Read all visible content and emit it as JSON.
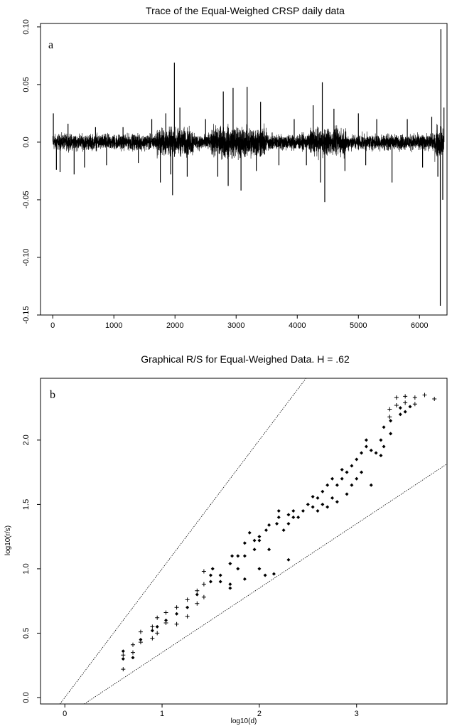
{
  "chart_data": [
    {
      "type": "line",
      "panel_label": "a",
      "title": "Trace of the Equal-Weighed CRSP daily data",
      "xlabel": "",
      "ylabel": "",
      "xlim": [
        -200,
        6450
      ],
      "ylim": [
        -0.15,
        0.103
      ],
      "x_ticks": [
        0,
        1000,
        2000,
        3000,
        4000,
        5000,
        6000
      ],
      "x_tick_labels": [
        "0",
        "1000",
        "2000",
        "3000",
        "4000",
        "5000",
        "6000"
      ],
      "y_ticks": [
        -0.15,
        -0.1,
        -0.05,
        0.0,
        0.05,
        0.1
      ],
      "y_tick_labels": [
        "-0.15",
        "-0.10",
        "-0.05",
        "0.0",
        "0.05",
        "0.10"
      ],
      "n_points": 6400,
      "spikes": [
        {
          "x": 10,
          "y": 0.025
        },
        {
          "x": 60,
          "y": -0.024
        },
        {
          "x": 120,
          "y": -0.026
        },
        {
          "x": 250,
          "y": 0.016
        },
        {
          "x": 350,
          "y": -0.028
        },
        {
          "x": 520,
          "y": -0.022
        },
        {
          "x": 700,
          "y": 0.013
        },
        {
          "x": 880,
          "y": -0.02
        },
        {
          "x": 1150,
          "y": 0.013
        },
        {
          "x": 1400,
          "y": -0.018
        },
        {
          "x": 1620,
          "y": 0.02
        },
        {
          "x": 1760,
          "y": -0.035
        },
        {
          "x": 1850,
          "y": 0.025
        },
        {
          "x": 1930,
          "y": -0.028
        },
        {
          "x": 1960,
          "y": -0.046
        },
        {
          "x": 1990,
          "y": 0.069
        },
        {
          "x": 2080,
          "y": 0.03
        },
        {
          "x": 2200,
          "y": -0.03
        },
        {
          "x": 2500,
          "y": 0.02
        },
        {
          "x": 2700,
          "y": -0.03
        },
        {
          "x": 2790,
          "y": 0.044
        },
        {
          "x": 2870,
          "y": -0.038
        },
        {
          "x": 2950,
          "y": 0.047
        },
        {
          "x": 3080,
          "y": -0.042
        },
        {
          "x": 3180,
          "y": 0.048
        },
        {
          "x": 3330,
          "y": -0.025
        },
        {
          "x": 3400,
          "y": 0.035
        },
        {
          "x": 3700,
          "y": -0.02
        },
        {
          "x": 3950,
          "y": 0.02
        },
        {
          "x": 4150,
          "y": -0.02
        },
        {
          "x": 4260,
          "y": 0.032
        },
        {
          "x": 4380,
          "y": -0.035
        },
        {
          "x": 4410,
          "y": 0.052
        },
        {
          "x": 4450,
          "y": -0.052
        },
        {
          "x": 4600,
          "y": 0.029
        },
        {
          "x": 4780,
          "y": -0.025
        },
        {
          "x": 5000,
          "y": 0.025
        },
        {
          "x": 5120,
          "y": -0.02
        },
        {
          "x": 5300,
          "y": 0.02
        },
        {
          "x": 5550,
          "y": -0.035
        },
        {
          "x": 5800,
          "y": 0.02
        },
        {
          "x": 6050,
          "y": -0.022
        },
        {
          "x": 6200,
          "y": 0.022
        },
        {
          "x": 6300,
          "y": -0.03
        },
        {
          "x": 6340,
          "y": -0.142
        },
        {
          "x": 6350,
          "y": 0.098
        },
        {
          "x": 6380,
          "y": -0.05
        },
        {
          "x": 6400,
          "y": 0.03
        }
      ],
      "grid": false
    },
    {
      "type": "scatter",
      "panel_label": "b",
      "title": "Graphical R/S for Equal-Weighed Data.  H = .62",
      "xlabel": "log10(d)",
      "ylabel": "log10(r/s)",
      "xlim": [
        -0.25,
        3.93
      ],
      "ylim": [
        -0.05,
        2.48
      ],
      "x_ticks": [
        0,
        1,
        2,
        3
      ],
      "x_tick_labels": [
        "0",
        "1",
        "2",
        "3"
      ],
      "y_ticks": [
        0.0,
        0.5,
        1.0,
        1.5,
        2.0
      ],
      "y_tick_labels": [
        "0.0",
        "0.5",
        "1.0",
        "1.5",
        "2.0"
      ],
      "reference_lines": [
        {
          "slope": 1.0,
          "intercept": 0.0
        },
        {
          "slope": 0.5,
          "intercept": -0.15
        }
      ],
      "series": [
        {
          "marker": "plus",
          "points": [
            [
              0.6,
              0.22
            ],
            [
              0.6,
              0.33
            ],
            [
              0.7,
              0.35
            ],
            [
              0.7,
              0.41
            ],
            [
              0.78,
              0.43
            ],
            [
              0.78,
              0.51
            ],
            [
              0.9,
              0.46
            ],
            [
              0.9,
              0.55
            ],
            [
              0.95,
              0.5
            ],
            [
              0.95,
              0.62
            ],
            [
              1.04,
              0.58
            ],
            [
              1.04,
              0.66
            ],
            [
              1.15,
              0.57
            ],
            [
              1.15,
              0.7
            ],
            [
              1.26,
              0.63
            ],
            [
              1.26,
              0.76
            ],
            [
              1.36,
              0.73
            ],
            [
              1.36,
              0.83
            ],
            [
              1.43,
              0.78
            ],
            [
              1.43,
              0.88
            ],
            [
              1.43,
              0.98
            ],
            [
              3.34,
              2.18
            ],
            [
              3.34,
              2.24
            ],
            [
              3.41,
              2.27
            ],
            [
              3.41,
              2.33
            ],
            [
              3.5,
              2.29
            ],
            [
              3.5,
              2.34
            ],
            [
              3.6,
              2.33
            ],
            [
              3.6,
              2.28
            ],
            [
              3.7,
              2.35
            ],
            [
              3.8,
              2.32
            ]
          ]
        },
        {
          "marker": "diamond",
          "points": [
            [
              0.6,
              0.3
            ],
            [
              0.6,
              0.36
            ],
            [
              0.7,
              0.31
            ],
            [
              0.78,
              0.45
            ],
            [
              0.9,
              0.52
            ],
            [
              0.95,
              0.55
            ],
            [
              1.04,
              0.6
            ],
            [
              1.15,
              0.65
            ],
            [
              1.26,
              0.7
            ],
            [
              1.36,
              0.8
            ],
            [
              1.5,
              0.9
            ],
            [
              1.5,
              0.95
            ],
            [
              1.52,
              1.0
            ],
            [
              1.6,
              0.9
            ],
            [
              1.6,
              0.95
            ],
            [
              1.7,
              0.85
            ],
            [
              1.7,
              0.88
            ],
            [
              1.7,
              1.04
            ],
            [
              1.72,
              1.1
            ],
            [
              1.78,
              1.0
            ],
            [
              1.78,
              1.1
            ],
            [
              1.85,
              0.92
            ],
            [
              1.85,
              1.1
            ],
            [
              1.85,
              1.2
            ],
            [
              1.9,
              1.28
            ],
            [
              1.95,
              1.15
            ],
            [
              1.95,
              1.22
            ],
            [
              2.0,
              1.0
            ],
            [
              2.0,
              1.22
            ],
            [
              2.0,
              1.25
            ],
            [
              2.06,
              0.95
            ],
            [
              2.07,
              1.3
            ],
            [
              2.1,
              1.15
            ],
            [
              2.1,
              1.34
            ],
            [
              2.15,
              0.96
            ],
            [
              2.18,
              1.35
            ],
            [
              2.2,
              1.4
            ],
            [
              2.2,
              1.45
            ],
            [
              2.25,
              1.3
            ],
            [
              2.3,
              1.35
            ],
            [
              2.3,
              1.42
            ],
            [
              2.35,
              1.4
            ],
            [
              2.35,
              1.45
            ],
            [
              2.4,
              1.4
            ],
            [
              2.45,
              1.45
            ],
            [
              2.5,
              1.5
            ],
            [
              2.55,
              1.48
            ],
            [
              2.55,
              1.56
            ],
            [
              2.6,
              1.45
            ],
            [
              2.6,
              1.55
            ],
            [
              2.65,
              1.5
            ],
            [
              2.65,
              1.6
            ],
            [
              2.7,
              1.48
            ],
            [
              2.7,
              1.65
            ],
            [
              2.75,
              1.55
            ],
            [
              2.75,
              1.7
            ],
            [
              2.8,
              1.52
            ],
            [
              2.8,
              1.65
            ],
            [
              2.85,
              1.7
            ],
            [
              2.85,
              1.77
            ],
            [
              2.9,
              1.58
            ],
            [
              2.9,
              1.75
            ],
            [
              2.95,
              1.65
            ],
            [
              2.95,
              1.8
            ],
            [
              3.0,
              1.7
            ],
            [
              3.0,
              1.85
            ],
            [
              3.05,
              1.75
            ],
            [
              3.05,
              1.9
            ],
            [
              3.1,
              1.95
            ],
            [
              3.1,
              2.0
            ],
            [
              3.15,
              1.65
            ],
            [
              3.15,
              1.92
            ],
            [
              3.2,
              1.9
            ],
            [
              3.25,
              2.0
            ],
            [
              3.25,
              1.88
            ],
            [
              3.28,
              1.95
            ],
            [
              3.28,
              2.1
            ],
            [
              3.35,
              2.05
            ],
            [
              3.35,
              2.15
            ],
            [
              3.45,
              2.2
            ],
            [
              3.45,
              2.25
            ],
            [
              3.5,
              2.22
            ],
            [
              3.55,
              2.26
            ],
            [
              2.3,
              1.07
            ]
          ]
        }
      ],
      "grid": false
    }
  ]
}
